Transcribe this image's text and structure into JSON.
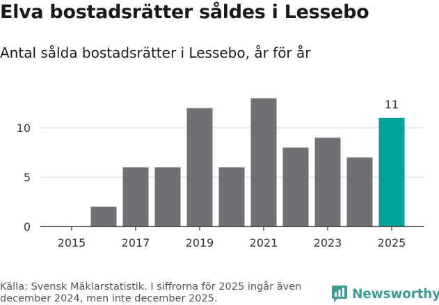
{
  "header": {
    "title": "Elva bostadsrätter såldes i Lessebo",
    "subtitle": "Antal sålda bostadsrätter i Lessebo, år för år"
  },
  "chart_data": {
    "type": "bar",
    "title": "Elva bostadsrätter såldes i Lessebo",
    "subtitle": "Antal sålda bostadsrätter i Lessebo, år för år",
    "categories": [
      "2015",
      "2016",
      "2017",
      "2018",
      "2019",
      "2020",
      "2021",
      "2022",
      "2023",
      "2024",
      "2025"
    ],
    "values": [
      0,
      2,
      6,
      6,
      12,
      6,
      13,
      8,
      9,
      7,
      11
    ],
    "x_tick_labels": [
      "2015",
      "2017",
      "2019",
      "2021",
      "2023",
      "2025"
    ],
    "y_tick_labels": [
      "0",
      "5",
      "10"
    ],
    "y_ticks": [
      0,
      5,
      10
    ],
    "ylim": [
      0,
      13
    ],
    "grid": true,
    "xlabel": "",
    "ylabel": "",
    "highlight_index": 10,
    "highlight_label": "11",
    "colors": {
      "bar": "#717075",
      "highlight": "#00a39a",
      "grid": "#d8d8d8",
      "axis": "#333333",
      "tick_text": "#333333"
    }
  },
  "footer": {
    "source": "Källa: Svensk Mäklarstatistik. I siffrorna för 2025 ingår även december 2024, men inte december 2025.",
    "logo_text": "Newsworthy",
    "logo_icon": "bar-chart-logo-icon",
    "logo_color": "#3f9c94"
  }
}
